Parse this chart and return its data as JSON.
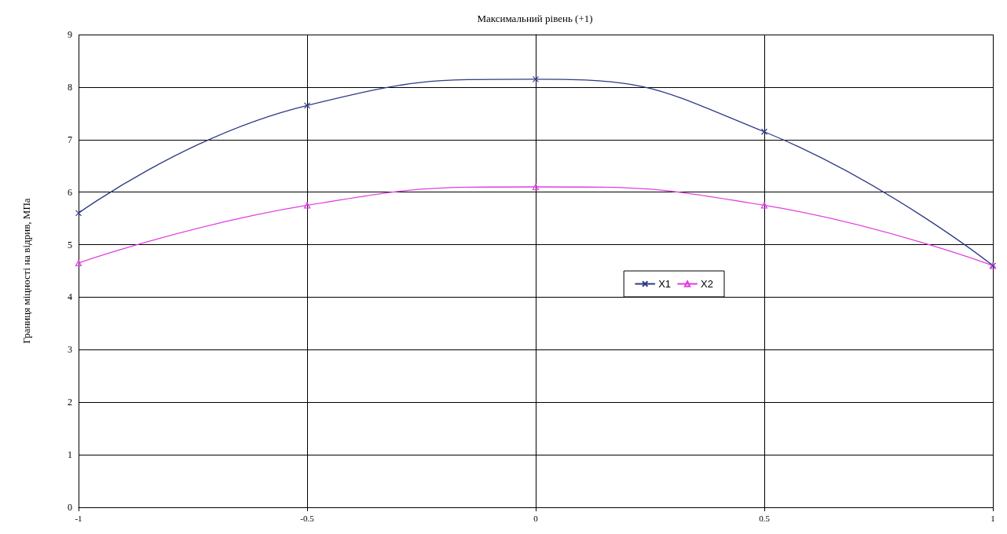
{
  "chart_data": {
    "type": "line",
    "title": "Максимальний рівень (+1)",
    "ylabel": "Границя міцності на відрив, МПа",
    "x": [
      -1,
      -0.5,
      0,
      0.5,
      1
    ],
    "series": [
      {
        "name": "X1",
        "color": "#2e3a86",
        "marker": "cross",
        "values": [
          5.6,
          7.65,
          8.15,
          7.15,
          4.6
        ]
      },
      {
        "name": "X2",
        "color": "#e040e0",
        "marker": "triangle",
        "values": [
          4.65,
          5.75,
          6.1,
          5.75,
          4.6
        ]
      }
    ],
    "xlim": [
      -1,
      1
    ],
    "xticks": [
      -1,
      -0.5,
      0,
      0.5,
      1
    ],
    "ylim": [
      0,
      9
    ],
    "yticks": [
      0,
      1,
      2,
      3,
      4,
      5,
      6,
      7,
      8,
      9
    ],
    "grid": true,
    "legend": "right",
    "line_style": "solid"
  }
}
